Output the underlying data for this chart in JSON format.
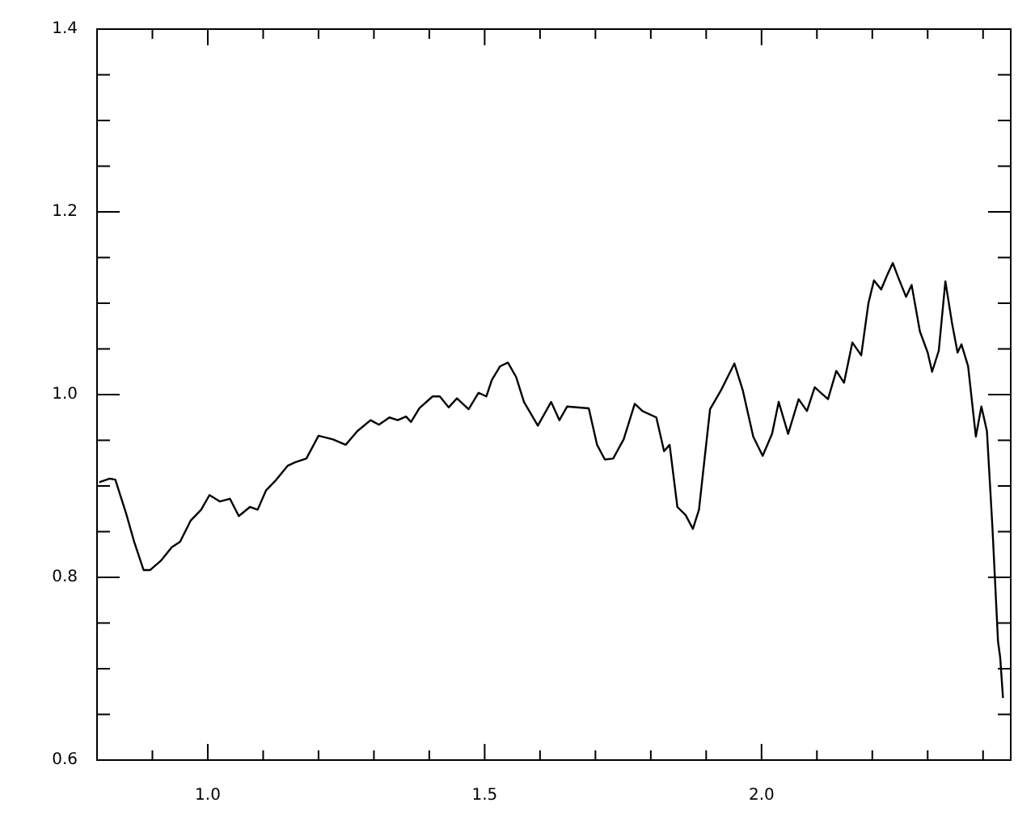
{
  "chart_data": {
    "type": "line",
    "xlim": [
      0.8,
      2.45
    ],
    "ylim": [
      0.6,
      1.4
    ],
    "xticks": [
      {
        "value": 0.9,
        "label": null
      },
      {
        "value": 1.0,
        "label": "1.0"
      },
      {
        "value": 1.1,
        "label": null
      },
      {
        "value": 1.2,
        "label": null
      },
      {
        "value": 1.3,
        "label": null
      },
      {
        "value": 1.4,
        "label": null
      },
      {
        "value": 1.5,
        "label": "1.5"
      },
      {
        "value": 1.6,
        "label": null
      },
      {
        "value": 1.7,
        "label": null
      },
      {
        "value": 1.8,
        "label": null
      },
      {
        "value": 1.9,
        "label": null
      },
      {
        "value": 2.0,
        "label": "2.0"
      },
      {
        "value": 2.1,
        "label": null
      },
      {
        "value": 2.2,
        "label": null
      },
      {
        "value": 2.3,
        "label": null
      },
      {
        "value": 2.4,
        "label": null
      }
    ],
    "yticks": [
      {
        "value": 0.6,
        "label": "0.6"
      },
      {
        "value": 0.65,
        "label": null
      },
      {
        "value": 0.7,
        "label": null
      },
      {
        "value": 0.75,
        "label": null
      },
      {
        "value": 0.8,
        "label": "0.8"
      },
      {
        "value": 0.85,
        "label": null
      },
      {
        "value": 0.9,
        "label": null
      },
      {
        "value": 0.95,
        "label": null
      },
      {
        "value": 1.0,
        "label": "1.0"
      },
      {
        "value": 1.05,
        "label": null
      },
      {
        "value": 1.1,
        "label": null
      },
      {
        "value": 1.15,
        "label": null
      },
      {
        "value": 1.2,
        "label": "1.2"
      },
      {
        "value": 1.25,
        "label": null
      },
      {
        "value": 1.3,
        "label": null
      },
      {
        "value": 1.35,
        "label": null
      },
      {
        "value": 1.4,
        "label": "1.4"
      }
    ],
    "marker": "none",
    "line_style": "solid",
    "series": [
      {
        "color": "#000000",
        "x": [
          0.804,
          0.823,
          0.833,
          0.852,
          0.867,
          0.884,
          0.896,
          0.915,
          0.935,
          0.95,
          0.969,
          0.988,
          1.003,
          1.022,
          1.04,
          1.056,
          1.076,
          1.09,
          1.105,
          1.124,
          1.144,
          1.158,
          1.178,
          1.2,
          1.226,
          1.249,
          1.27,
          1.294,
          1.309,
          1.328,
          1.343,
          1.358,
          1.367,
          1.382,
          1.406,
          1.419,
          1.435,
          1.45,
          1.471,
          1.489,
          1.503,
          1.513,
          1.528,
          1.542,
          1.557,
          1.571,
          1.596,
          1.62,
          1.635,
          1.649,
          1.688,
          1.703,
          1.717,
          1.732,
          1.751,
          1.771,
          1.785,
          1.81,
          1.824,
          1.834,
          1.848,
          1.863,
          1.876,
          1.887,
          1.907,
          1.927,
          1.951,
          1.966,
          1.985,
          2.002,
          2.019,
          2.031,
          2.048,
          2.067,
          2.082,
          2.096,
          2.12,
          2.135,
          2.149,
          2.164,
          2.18,
          2.193,
          2.203,
          2.216,
          2.227,
          2.237,
          2.247,
          2.261,
          2.271,
          2.286,
          2.3,
          2.308,
          2.32,
          2.332,
          2.344,
          2.354,
          2.361,
          2.373,
          2.387,
          2.397,
          2.407,
          2.417,
          2.427,
          2.431,
          2.436
        ],
        "values": [
          0.904,
          0.908,
          0.907,
          0.871,
          0.839,
          0.808,
          0.808,
          0.818,
          0.833,
          0.839,
          0.862,
          0.874,
          0.89,
          0.883,
          0.886,
          0.867,
          0.877,
          0.874,
          0.895,
          0.907,
          0.922,
          0.926,
          0.93,
          0.955,
          0.951,
          0.945,
          0.96,
          0.972,
          0.967,
          0.975,
          0.972,
          0.976,
          0.97,
          0.985,
          0.998,
          0.998,
          0.986,
          0.996,
          0.984,
          1.002,
          0.998,
          1.016,
          1.031,
          1.035,
          1.019,
          0.992,
          0.966,
          0.992,
          0.972,
          0.987,
          0.985,
          0.945,
          0.929,
          0.93,
          0.951,
          0.99,
          0.982,
          0.975,
          0.938,
          0.945,
          0.877,
          0.868,
          0.853,
          0.874,
          0.984,
          1.005,
          1.034,
          1.005,
          0.954,
          0.933,
          0.957,
          0.992,
          0.957,
          0.995,
          0.982,
          1.008,
          0.995,
          1.026,
          1.013,
          1.057,
          1.043,
          1.1,
          1.125,
          1.115,
          1.131,
          1.144,
          1.128,
          1.107,
          1.12,
          1.069,
          1.046,
          1.025,
          1.048,
          1.124,
          1.078,
          1.046,
          1.055,
          1.031,
          0.954,
          0.987,
          0.96,
          0.854,
          0.73,
          0.712,
          0.668
        ]
      }
    ]
  }
}
